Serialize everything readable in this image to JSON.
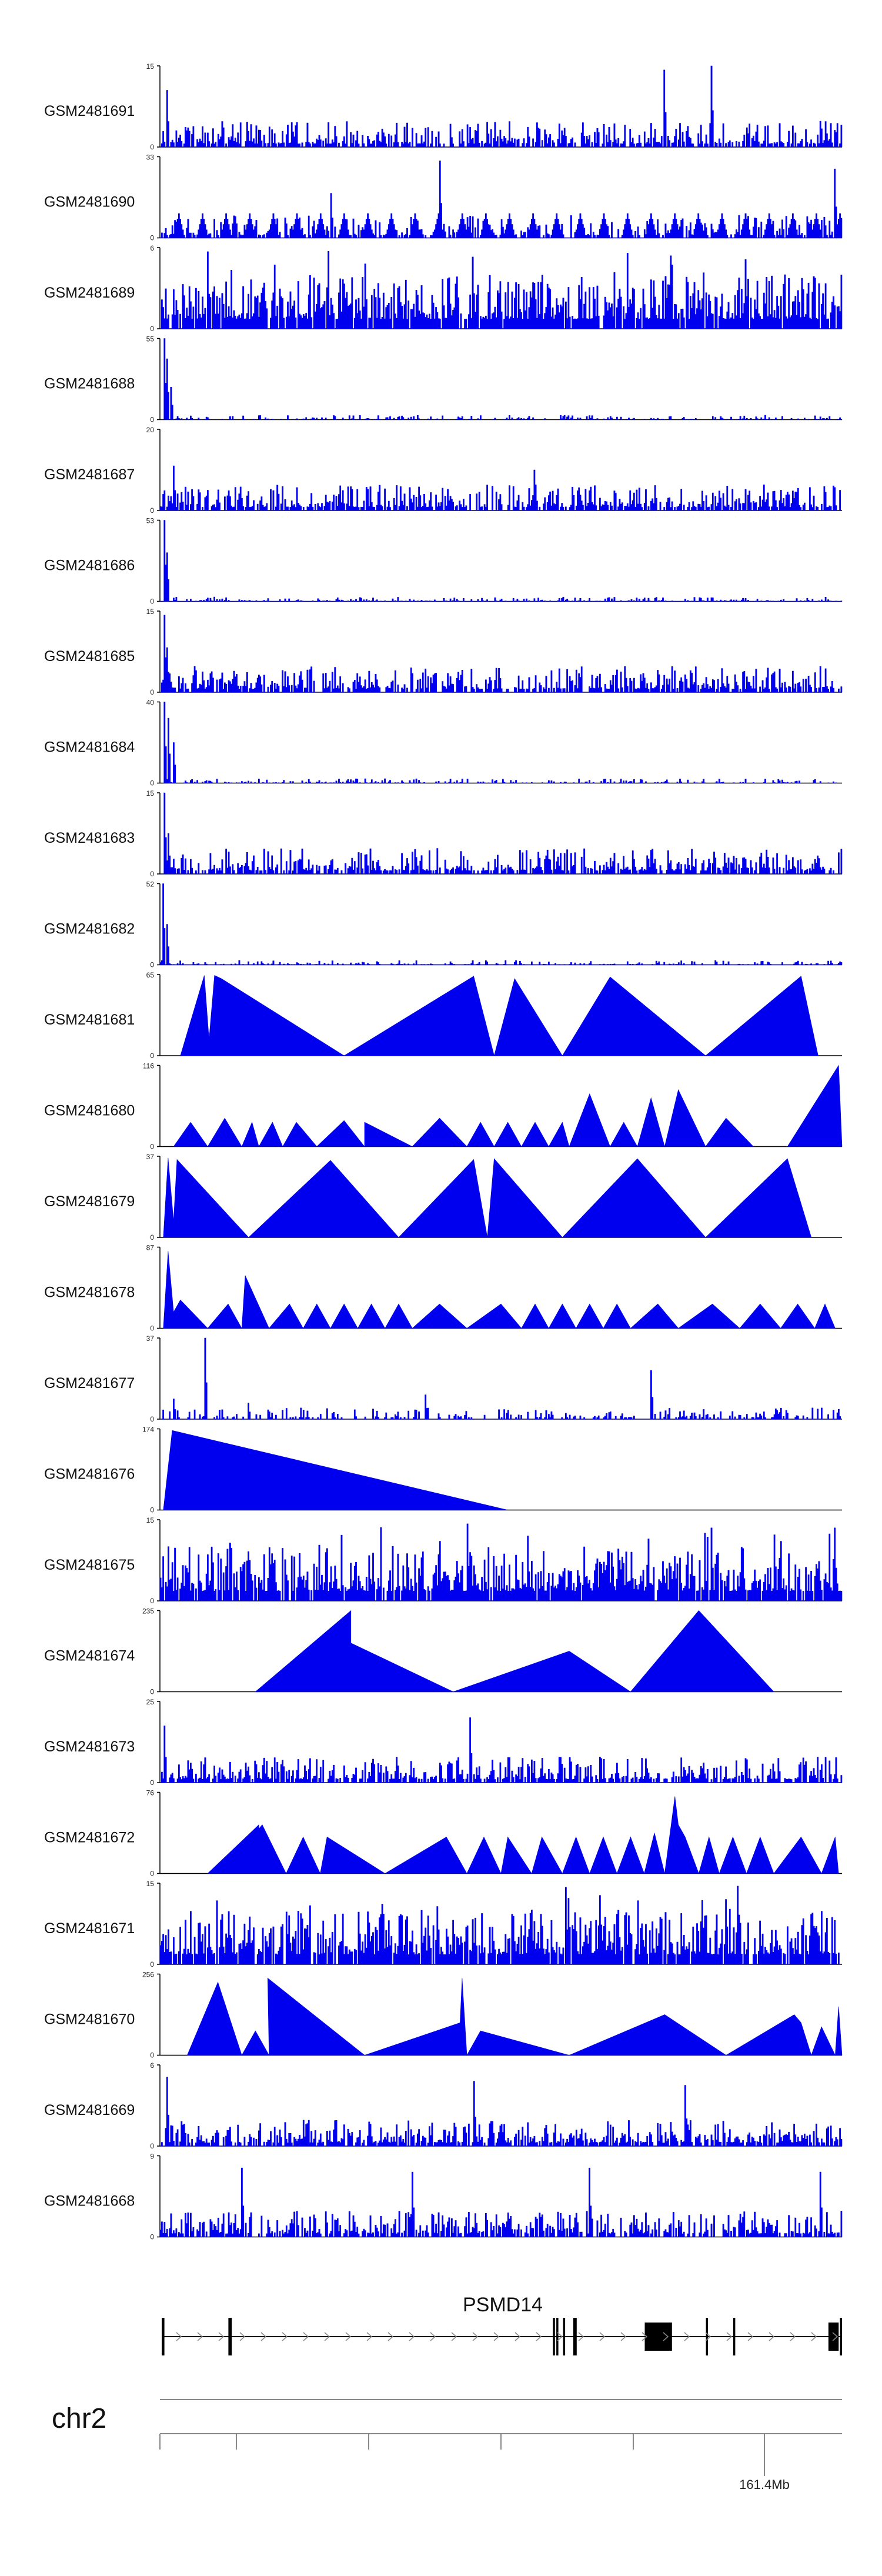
{
  "track_color": "#0000ee",
  "axis_color": "#000000",
  "tracks": [
    {
      "name": "GSM2481691",
      "ymax": "15",
      "ymin": "0",
      "style": "dense",
      "seed": 11,
      "spikes": [
        [
          0.74,
          0.95
        ],
        [
          0.81,
          1.0
        ],
        [
          0.01,
          0.7
        ]
      ]
    },
    {
      "name": "GSM2481690",
      "ymax": "33",
      "ymin": "0",
      "style": "mixed",
      "seed": 17,
      "spikes": [
        [
          0.41,
          0.95
        ],
        [
          0.99,
          0.85
        ],
        [
          0.25,
          0.55
        ]
      ]
    },
    {
      "name": "GSM2481689",
      "ymax": "6",
      "ymin": "0",
      "style": "verydense",
      "seed": 23,
      "spikes": [
        [
          0.07,
          0.95
        ],
        [
          0.75,
          0.9
        ],
        [
          0.3,
          0.8
        ]
      ]
    },
    {
      "name": "GSM2481688",
      "ymax": "55",
      "ymin": "0",
      "style": "headspike",
      "seed": 29,
      "spikes": [
        [
          0.005,
          1.0
        ],
        [
          0.01,
          0.75
        ],
        [
          0.015,
          0.4
        ]
      ]
    },
    {
      "name": "GSM2481687",
      "ymax": "20",
      "ymin": "0",
      "style": "dense",
      "seed": 31,
      "spikes": [
        [
          0.02,
          0.55
        ],
        [
          0.55,
          0.5
        ]
      ]
    },
    {
      "name": "GSM2481686",
      "ymax": "53",
      "ymin": "0",
      "style": "headspike",
      "seed": 37,
      "spikes": [
        [
          0.005,
          1.0
        ],
        [
          0.01,
          0.6
        ]
      ]
    },
    {
      "name": "GSM2481685",
      "ymax": "15",
      "ymin": "0",
      "style": "dense",
      "seed": 41,
      "spikes": [
        [
          0.005,
          0.95
        ],
        [
          0.01,
          0.55
        ]
      ]
    },
    {
      "name": "GSM2481684",
      "ymax": "40",
      "ymin": "0",
      "style": "headspike",
      "seed": 43,
      "spikes": [
        [
          0.005,
          1.0
        ],
        [
          0.012,
          0.8
        ],
        [
          0.02,
          0.5
        ]
      ]
    },
    {
      "name": "GSM2481683",
      "ymax": "15",
      "ymin": "0",
      "style": "dense",
      "seed": 47,
      "spikes": [
        [
          0.005,
          1.0
        ],
        [
          0.012,
          0.5
        ]
      ]
    },
    {
      "name": "GSM2481682",
      "ymax": "52",
      "ymin": "0",
      "style": "headspike",
      "seed": 53,
      "spikes": [
        [
          0.004,
          1.0
        ],
        [
          0.01,
          0.5
        ]
      ]
    },
    {
      "name": "GSM2481681",
      "ymax": "65",
      "ymin": "0",
      "style": "triangles",
      "seed": 59,
      "points": [
        [
          0.03,
          0
        ],
        [
          0.065,
          0.99
        ],
        [
          0.072,
          0.2
        ],
        [
          0.08,
          0.99
        ],
        [
          0.09,
          0.95
        ],
        [
          0.27,
          0
        ],
        [
          0.46,
          0.98
        ],
        [
          0.49,
          0
        ],
        [
          0.52,
          0.95
        ],
        [
          0.59,
          0
        ],
        [
          0.66,
          0.97
        ],
        [
          0.8,
          0
        ],
        [
          0.94,
          0.98
        ],
        [
          0.965,
          0
        ]
      ]
    },
    {
      "name": "GSM2481680",
      "ymax": "116",
      "ymin": "0",
      "style": "triangles",
      "seed": 61,
      "points": [
        [
          0.02,
          0
        ],
        [
          0.045,
          0.3
        ],
        [
          0.07,
          0
        ],
        [
          0.095,
          0.35
        ],
        [
          0.12,
          0
        ],
        [
          0.135,
          0.3
        ],
        [
          0.145,
          0
        ],
        [
          0.165,
          0.3
        ],
        [
          0.18,
          0
        ],
        [
          0.2,
          0.3
        ],
        [
          0.23,
          0
        ],
        [
          0.27,
          0.32
        ],
        [
          0.3,
          0
        ],
        [
          0.3,
          0.3
        ],
        [
          0.37,
          0
        ],
        [
          0.41,
          0.35
        ],
        [
          0.45,
          0
        ],
        [
          0.47,
          0.3
        ],
        [
          0.49,
          0
        ],
        [
          0.51,
          0.3
        ],
        [
          0.53,
          0
        ],
        [
          0.55,
          0.3
        ],
        [
          0.57,
          0
        ],
        [
          0.59,
          0.3
        ],
        [
          0.6,
          0
        ],
        [
          0.63,
          0.65
        ],
        [
          0.66,
          0
        ],
        [
          0.68,
          0.3
        ],
        [
          0.7,
          0
        ],
        [
          0.72,
          0.6
        ],
        [
          0.74,
          0
        ],
        [
          0.76,
          0.7
        ],
        [
          0.8,
          0
        ],
        [
          0.83,
          0.35
        ],
        [
          0.87,
          0
        ],
        [
          0.92,
          0
        ],
        [
          0.995,
          1.0
        ],
        [
          1.0,
          0
        ]
      ]
    },
    {
      "name": "GSM2481679",
      "ymax": "37",
      "ymin": "0",
      "style": "triangles",
      "seed": 67,
      "points": [
        [
          0.005,
          0
        ],
        [
          0.012,
          0.98
        ],
        [
          0.02,
          0.2
        ],
        [
          0.025,
          0.96
        ],
        [
          0.13,
          0
        ],
        [
          0.25,
          0.95
        ],
        [
          0.35,
          0
        ],
        [
          0.46,
          0.96
        ],
        [
          0.48,
          0
        ],
        [
          0.49,
          0.97
        ],
        [
          0.59,
          0
        ],
        [
          0.7,
          0.97
        ],
        [
          0.8,
          0
        ],
        [
          0.92,
          0.97
        ],
        [
          0.955,
          0
        ]
      ]
    },
    {
      "name": "GSM2481678",
      "ymax": "87",
      "ymin": "0",
      "style": "triangles",
      "seed": 71,
      "points": [
        [
          0.005,
          0
        ],
        [
          0.012,
          0.95
        ],
        [
          0.02,
          0.2
        ],
        [
          0.03,
          0.35
        ],
        [
          0.07,
          0
        ],
        [
          0.1,
          0.3
        ],
        [
          0.12,
          0
        ],
        [
          0.125,
          0.65
        ],
        [
          0.16,
          0
        ],
        [
          0.19,
          0.3
        ],
        [
          0.21,
          0
        ],
        [
          0.23,
          0.3
        ],
        [
          0.25,
          0
        ],
        [
          0.27,
          0.3
        ],
        [
          0.29,
          0
        ],
        [
          0.31,
          0.3
        ],
        [
          0.33,
          0
        ],
        [
          0.35,
          0.3
        ],
        [
          0.37,
          0
        ],
        [
          0.41,
          0.3
        ],
        [
          0.45,
          0
        ],
        [
          0.5,
          0.3
        ],
        [
          0.53,
          0
        ],
        [
          0.55,
          0.3
        ],
        [
          0.57,
          0
        ],
        [
          0.59,
          0.3
        ],
        [
          0.61,
          0
        ],
        [
          0.63,
          0.3
        ],
        [
          0.65,
          0
        ],
        [
          0.67,
          0.3
        ],
        [
          0.69,
          0
        ],
        [
          0.73,
          0.3
        ],
        [
          0.76,
          0
        ],
        [
          0.81,
          0.3
        ],
        [
          0.85,
          0
        ],
        [
          0.88,
          0.3
        ],
        [
          0.91,
          0
        ],
        [
          0.935,
          0.3
        ],
        [
          0.96,
          0
        ],
        [
          0.975,
          0.3
        ],
        [
          0.99,
          0
        ]
      ]
    },
    {
      "name": "GSM2481677",
      "ymax": "37",
      "ymin": "0",
      "style": "sparse",
      "seed": 73,
      "spikes": [
        [
          0.066,
          1.0
        ],
        [
          0.72,
          0.6
        ],
        [
          0.02,
          0.25
        ],
        [
          0.13,
          0.2
        ],
        [
          0.39,
          0.3
        ]
      ]
    },
    {
      "name": "GSM2481676",
      "ymax": "174",
      "ymin": "0",
      "style": "triangles",
      "seed": 79,
      "points": [
        [
          0.005,
          0
        ],
        [
          0.018,
          0.98
        ],
        [
          0.51,
          0
        ]
      ]
    },
    {
      "name": "GSM2481675",
      "ymax": "15",
      "ymin": "0",
      "style": "verydense",
      "seed": 83,
      "spikes": [
        [
          0.45,
          0.95
        ],
        [
          0.81,
          0.9
        ],
        [
          0.54,
          0.8
        ],
        [
          0.99,
          0.9
        ]
      ]
    },
    {
      "name": "GSM2481674",
      "ymax": "235",
      "ymin": "0",
      "style": "triangles",
      "seed": 89,
      "points": [
        [
          0.14,
          0
        ],
        [
          0.28,
          1.0
        ],
        [
          0.28,
          0.6
        ],
        [
          0.43,
          0
        ],
        [
          0.6,
          0.5
        ],
        [
          0.69,
          0
        ],
        [
          0.79,
          1.0
        ],
        [
          0.9,
          0
        ]
      ]
    },
    {
      "name": "GSM2481673",
      "ymax": "25",
      "ymin": "0",
      "style": "dense",
      "seed": 97,
      "spikes": [
        [
          0.455,
          0.8
        ],
        [
          0.005,
          0.7
        ]
      ]
    },
    {
      "name": "GSM2481672",
      "ymax": "76",
      "ymin": "0",
      "style": "triangles",
      "seed": 101,
      "points": [
        [
          0.07,
          0
        ],
        [
          0.145,
          0.6
        ],
        [
          0.145,
          0.55
        ],
        [
          0.15,
          0.6
        ],
        [
          0.185,
          0
        ],
        [
          0.21,
          0.45
        ],
        [
          0.235,
          0
        ],
        [
          0.245,
          0.45
        ],
        [
          0.33,
          0
        ],
        [
          0.42,
          0.45
        ],
        [
          0.45,
          0
        ],
        [
          0.475,
          0.45
        ],
        [
          0.5,
          0
        ],
        [
          0.51,
          0.45
        ],
        [
          0.545,
          0
        ],
        [
          0.56,
          0.45
        ],
        [
          0.59,
          0
        ],
        [
          0.61,
          0.45
        ],
        [
          0.63,
          0
        ],
        [
          0.65,
          0.45
        ],
        [
          0.67,
          0
        ],
        [
          0.69,
          0.45
        ],
        [
          0.71,
          0
        ],
        [
          0.725,
          0.5
        ],
        [
          0.74,
          0
        ],
        [
          0.755,
          0.95
        ],
        [
          0.76,
          0.6
        ],
        [
          0.77,
          0.45
        ],
        [
          0.79,
          0
        ],
        [
          0.805,
          0.45
        ],
        [
          0.82,
          0
        ],
        [
          0.84,
          0.45
        ],
        [
          0.86,
          0
        ],
        [
          0.88,
          0.45
        ],
        [
          0.9,
          0
        ],
        [
          0.94,
          0.45
        ],
        [
          0.97,
          0
        ],
        [
          0.99,
          0.45
        ],
        [
          0.995,
          0
        ]
      ]
    },
    {
      "name": "GSM2481671",
      "ymax": "15",
      "ymin": "0",
      "style": "verydense",
      "seed": 103,
      "spikes": [
        [
          0.595,
          0.95
        ],
        [
          0.645,
          0.85
        ],
        [
          0.83,
          0.8
        ]
      ]
    },
    {
      "name": "GSM2481670",
      "ymax": "256",
      "ymin": "0",
      "style": "triangles",
      "seed": 107,
      "points": [
        [
          0.04,
          0
        ],
        [
          0.085,
          0.9
        ],
        [
          0.12,
          0
        ],
        [
          0.14,
          0.3
        ],
        [
          0.16,
          0
        ],
        [
          0.158,
          0.95
        ],
        [
          0.3,
          0
        ],
        [
          0.44,
          0.4
        ],
        [
          0.443,
          0.95
        ],
        [
          0.45,
          0
        ],
        [
          0.47,
          0.3
        ],
        [
          0.6,
          0
        ],
        [
          0.74,
          0.5
        ],
        [
          0.83,
          0
        ],
        [
          0.93,
          0.5
        ],
        [
          0.94,
          0.4
        ],
        [
          0.955,
          0
        ],
        [
          0.97,
          0.35
        ],
        [
          0.99,
          0
        ],
        [
          0.995,
          0.6
        ],
        [
          1.0,
          0
        ]
      ]
    },
    {
      "name": "GSM2481669",
      "ymax": "6",
      "ymin": "0",
      "style": "dense",
      "seed": 109,
      "spikes": [
        [
          0.01,
          0.85
        ],
        [
          0.46,
          0.8
        ],
        [
          0.77,
          0.75
        ]
      ]
    },
    {
      "name": "GSM2481668",
      "ymax": "9",
      "ymin": "0",
      "style": "dense",
      "seed": 113,
      "spikes": [
        [
          0.12,
          0.85
        ],
        [
          0.37,
          0.8
        ],
        [
          0.63,
          0.85
        ],
        [
          0.97,
          0.8
        ]
      ]
    }
  ],
  "gene": {
    "name": "PSMD14",
    "exons": [
      [
        0.0,
        0.004
      ],
      [
        0.1,
        0.103
      ],
      [
        0.098,
        0.1
      ],
      [
        0.575,
        0.578
      ],
      [
        0.58,
        0.583
      ],
      [
        0.59,
        0.593
      ],
      [
        0.605,
        0.61
      ],
      [
        0.71,
        0.75
      ],
      [
        0.8,
        0.803
      ],
      [
        0.84,
        0.843
      ],
      [
        0.98,
        0.995
      ],
      [
        0.997,
        1.0
      ]
    ]
  },
  "chromosome": "chr2",
  "position_label": "161.4Mb"
}
